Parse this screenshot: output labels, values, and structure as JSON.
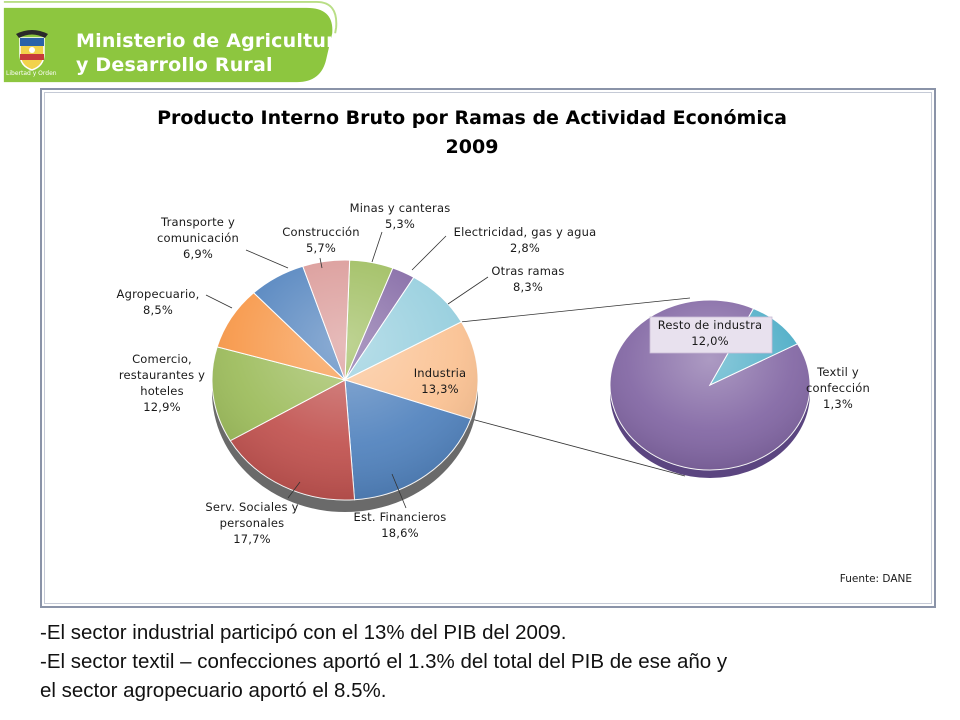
{
  "header": {
    "ministry_line1": "Ministerio de Agricultura",
    "ministry_line2": "y Desarrollo Rural",
    "seal_caption": "Libertad y Orden",
    "brand_color": "#8dc63f"
  },
  "chart_data": {
    "type": "pie",
    "title": "Producto Interno Bruto por Ramas de Actividad Económica",
    "subtitle": "2009",
    "slices": [
      {
        "label": "Minas y canteras",
        "value": 5.3,
        "display": "5,3%",
        "color": "#9bbb59"
      },
      {
        "label": "Electricidad, gas y agua",
        "value": 2.8,
        "display": "2,8%",
        "color": "#8064a2"
      },
      {
        "label": "Otras ramas",
        "value": 8.3,
        "display": "8,3%",
        "color": "#93cddd"
      },
      {
        "label": "Industria",
        "value": 13.3,
        "display": "13,3%",
        "color": "#fac090"
      },
      {
        "label": "Est. Financieros",
        "value": 18.6,
        "display": "18,6%",
        "color": "#4f81bd"
      },
      {
        "label": "Serv. Sociales y personales",
        "value": 17.7,
        "display": "17,7%",
        "color": "#c0504d"
      },
      {
        "label": "Comercio, restaurantes y hoteles",
        "value": 12.9,
        "display": "12,9%",
        "color": "#9bbb59"
      },
      {
        "label": "Agropecuario,",
        "value": 8.5,
        "display": "8,5%",
        "color": "#f79646"
      },
      {
        "label": "Transporte y comunicación",
        "value": 6.9,
        "display": "6,9%",
        "color": "#4f81bd"
      },
      {
        "label": "Construcción",
        "value": 5.7,
        "display": "5,7%",
        "color": "#d99694"
      }
    ],
    "breakout": {
      "source_slice": "Industria",
      "slices": [
        {
          "label": "Resto de industra",
          "value": 12.0,
          "display": "12,0%",
          "color": "#8064a2"
        },
        {
          "label": "Textil y confección",
          "value": 1.3,
          "display": "1,3%",
          "color": "#4bacc6"
        }
      ]
    },
    "source_note": "Fuente: DANE"
  },
  "caption": {
    "line1": "-El sector industrial participó con el 13% del PIB del 2009.",
    "line2": " -El sector textil – confecciones aportó el 1.3% del total del PIB de ese año y",
    "line3": "el sector agropecuario aportó el 8.5%."
  }
}
